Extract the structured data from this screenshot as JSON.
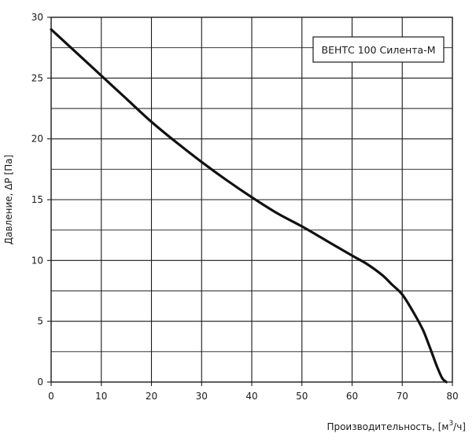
{
  "chart_data": {
    "type": "line",
    "xlabel": "Производительность, [м",
    "xlabel_sup": "3",
    "xlabel_tail": "/ч]",
    "ylabel": "Давление, ΔP [Па]",
    "xlim": [
      0,
      80
    ],
    "ylim": [
      0,
      30
    ],
    "x_ticks": [
      0,
      10,
      20,
      30,
      40,
      50,
      60,
      70,
      80
    ],
    "y_ticks": [
      0,
      5,
      10,
      15,
      20,
      25,
      30
    ],
    "x_tick_labels": [
      "0",
      "10",
      "20",
      "30",
      "40",
      "50",
      "60",
      "70",
      "80"
    ],
    "y_tick_labels": [
      "0",
      "5",
      "10",
      "15",
      "20",
      "25",
      "30"
    ],
    "grid": true,
    "y_minor_step": 2.5,
    "legend_position": "top-right",
    "series": [
      {
        "name": "ВЕНТС 100 Силента-М",
        "color": "#111111",
        "x": [
          0,
          5,
          10,
          15,
          20,
          25,
          30,
          35,
          40,
          45,
          50,
          55,
          60,
          63,
          66,
          68,
          70,
          72,
          74,
          75,
          76,
          77,
          78,
          78.8
        ],
        "y": [
          29.0,
          27.1,
          25.2,
          23.3,
          21.4,
          19.7,
          18.1,
          16.6,
          15.2,
          13.9,
          12.8,
          11.6,
          10.4,
          9.7,
          8.8,
          8.0,
          7.2,
          5.9,
          4.4,
          3.4,
          2.3,
          1.2,
          0.3,
          0
        ]
      }
    ]
  }
}
